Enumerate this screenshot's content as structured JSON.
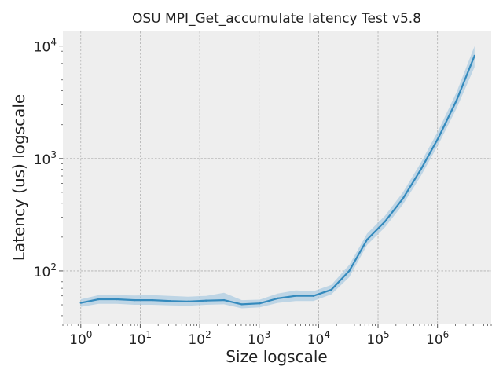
{
  "chart_data": {
    "type": "line",
    "title": "OSU MPI_Get_accumulate latency Test v5.8",
    "xlabel": "Size logscale",
    "ylabel": "Latency (us) logscale",
    "xscale": "log",
    "yscale": "log",
    "xlim": [
      0.5,
      8000000
    ],
    "ylim": [
      34,
      13500
    ],
    "x_ticks": [
      {
        "base": "10",
        "exp": "0",
        "value": 1
      },
      {
        "base": "10",
        "exp": "1",
        "value": 10
      },
      {
        "base": "10",
        "exp": "2",
        "value": 100
      },
      {
        "base": "10",
        "exp": "3",
        "value": 1000
      },
      {
        "base": "10",
        "exp": "4",
        "value": 10000
      },
      {
        "base": "10",
        "exp": "5",
        "value": 100000
      },
      {
        "base": "10",
        "exp": "6",
        "value": 1000000
      }
    ],
    "y_ticks": [
      {
        "base": "10",
        "exp": "2",
        "value": 100
      },
      {
        "base": "10",
        "exp": "3",
        "value": 1000
      },
      {
        "base": "10",
        "exp": "4",
        "value": 10000
      }
    ],
    "grid": true,
    "line_color": "#348ABD",
    "band_color": "#9fc4e0",
    "background_color": "#EEEEEE",
    "series": [
      {
        "x": [
          1,
          2,
          4,
          8,
          16,
          32,
          64,
          128,
          256,
          512,
          1024,
          2048,
          4096,
          8192,
          16384,
          32768,
          65536,
          131072,
          262144,
          524288,
          1048576,
          2097152,
          4194304
        ],
        "y": [
          52,
          56,
          56,
          55,
          55,
          54,
          53.5,
          54.5,
          55,
          50.5,
          51.5,
          57,
          60,
          60,
          68,
          100,
          190,
          275,
          440,
          800,
          1550,
          3300,
          8200
        ],
        "y_low": [
          48,
          51,
          51,
          50,
          50,
          49.5,
          49,
          50,
          50.5,
          46.5,
          47.5,
          52,
          54,
          54,
          62,
          88,
          170,
          245,
          390,
          700,
          1350,
          2800,
          6500
        ],
        "y_high": [
          56,
          61,
          61,
          60.5,
          61,
          60,
          59,
          60,
          64,
          55,
          55.5,
          63,
          67,
          66,
          75,
          113,
          215,
          310,
          500,
          920,
          1800,
          3900,
          10000
        ]
      }
    ]
  }
}
